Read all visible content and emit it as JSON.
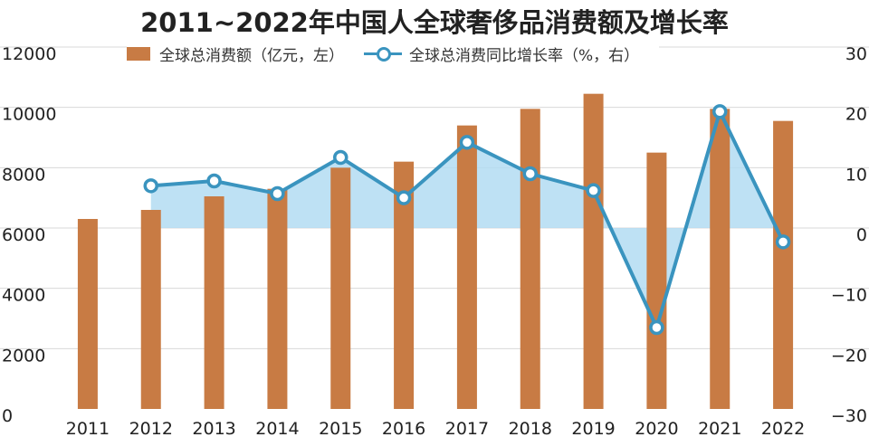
{
  "chart_data": {
    "type": "bar",
    "title": "2011~2022年中国人全球奢侈品消费额及增长率",
    "categories": [
      "2011",
      "2012",
      "2013",
      "2014",
      "2015",
      "2016",
      "2017",
      "2018",
      "2019",
      "2020",
      "2021",
      "2022"
    ],
    "series": [
      {
        "name": "全球总消费额（亿元，左）",
        "type": "bar",
        "axis": "left",
        "values": [
          6300,
          6600,
          7050,
          7300,
          8000,
          8200,
          9400,
          9950,
          10450,
          8500,
          9950,
          9550
        ]
      },
      {
        "name": "全球总消费同比增长率（%，右）",
        "type": "line",
        "axis": "right",
        "values": [
          null,
          7.0,
          7.8,
          5.7,
          11.7,
          5.0,
          14.2,
          9.0,
          6.2,
          -16.5,
          19.3,
          -2.3
        ]
      }
    ],
    "y_left": {
      "min": 0,
      "max": 12000,
      "ticks": [
        "0",
        "2000",
        "4000",
        "6000",
        "8000",
        "10000",
        "12000"
      ]
    },
    "y_right": {
      "min": -30,
      "max": 30,
      "ticks": [
        "−30",
        "−20",
        "−10",
        "0",
        "10",
        "20",
        "30"
      ]
    },
    "legend_position": "top",
    "colors": {
      "bar": "#c87b44",
      "line": "#3a94bf",
      "fill": "#b3dcf2",
      "grid": "#d8d8d8"
    }
  }
}
